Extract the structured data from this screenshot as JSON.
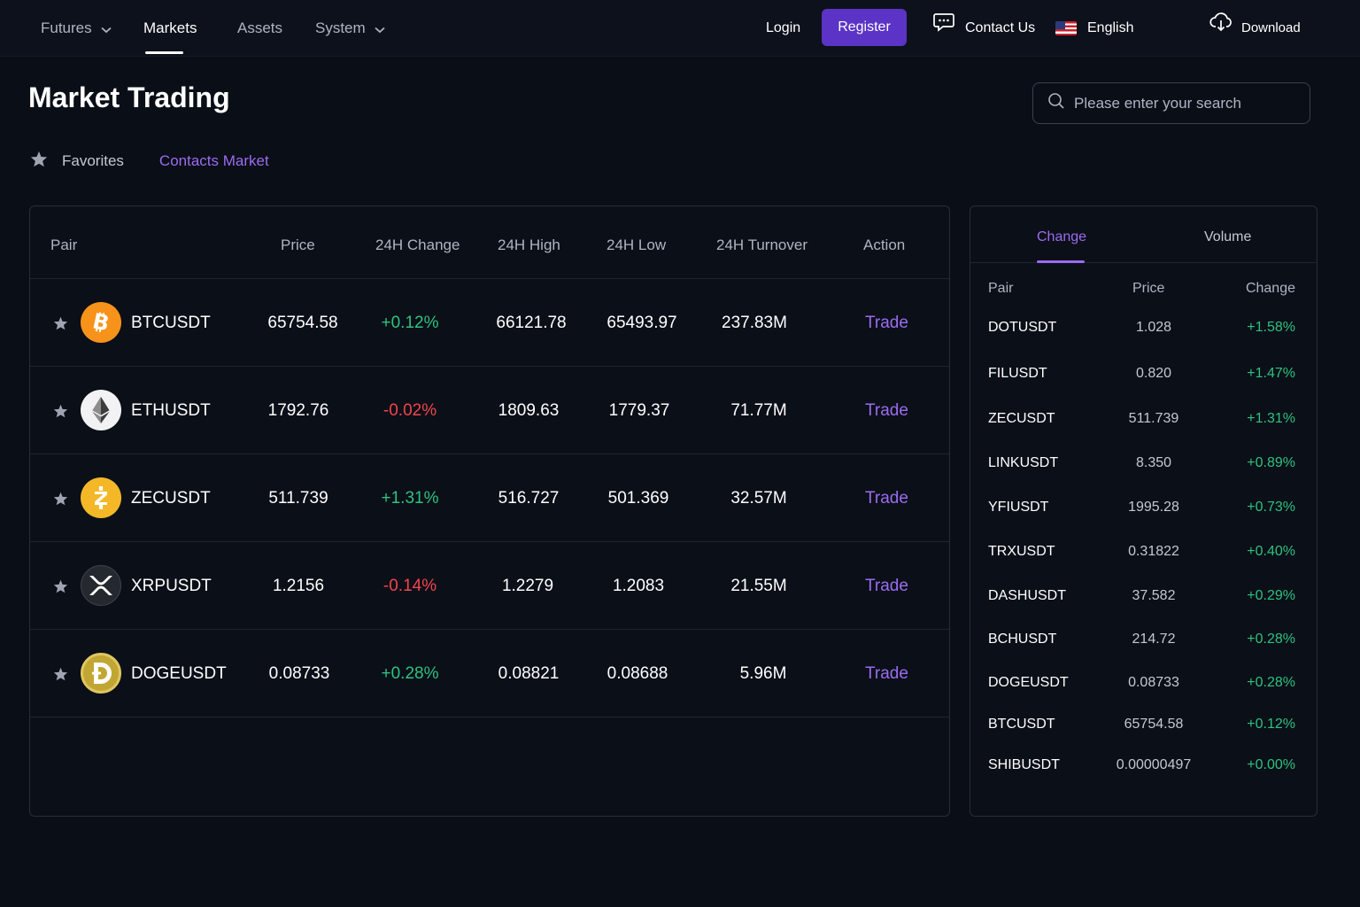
{
  "nav": {
    "items": [
      {
        "label": "Futures"
      },
      {
        "label": "Markets"
      },
      {
        "label": "Assets"
      },
      {
        "label": "System"
      }
    ],
    "login": "Login",
    "register": "Register",
    "contact": "Contact Us",
    "language": "English",
    "download": "Download"
  },
  "page": {
    "title": "Market Trading",
    "search_placeholder": "Please enter your search",
    "tab_favorites": "Favorites",
    "tab_contacts": "Contacts Market"
  },
  "table": {
    "headers": [
      "Pair",
      "Price",
      "24H Change",
      "24H High",
      "24H Low",
      "24H Turnover",
      "Action"
    ],
    "rows": [
      {
        "pair": "BTCUSDT",
        "price": "65754.58",
        "change": "+0.12%",
        "direction": "up",
        "high": "66121.78",
        "low": "65493.97",
        "turnover": "237.83M",
        "action": "Trade",
        "icon": "bitcoin-icon"
      },
      {
        "pair": "ETHUSDT",
        "price": "1792.76",
        "change": "-0.02%",
        "direction": "down",
        "high": "1809.63",
        "low": "1779.37",
        "turnover": "71.77M",
        "action": "Trade",
        "icon": "ethereum-icon"
      },
      {
        "pair": "ZECUSDT",
        "price": "511.739",
        "change": "+1.31%",
        "direction": "up",
        "high": "516.727",
        "low": "501.369",
        "turnover": "32.57M",
        "action": "Trade",
        "icon": "zcash-icon"
      },
      {
        "pair": "XRPUSDT",
        "price": "1.2156",
        "change": "-0.14%",
        "direction": "down",
        "high": "1.2279",
        "low": "1.2083",
        "turnover": "21.55M",
        "action": "Trade",
        "icon": "xrp-icon"
      },
      {
        "pair": "DOGEUSDT",
        "price": "0.08733",
        "change": "+0.28%",
        "direction": "up",
        "high": "0.08821",
        "low": "0.08688",
        "turnover": "5.96M",
        "action": "Trade",
        "icon": "dogecoin-icon"
      }
    ]
  },
  "side": {
    "tabs": [
      "Change",
      "Volume"
    ],
    "headers": [
      "Pair",
      "Price",
      "Change"
    ],
    "rows": [
      {
        "pair": "DOTUSDT",
        "price": "1.028",
        "change": "+1.58%"
      },
      {
        "pair": "FILUSDT",
        "price": "0.820",
        "change": "+1.47%"
      },
      {
        "pair": "ZECUSDT",
        "price": "511.739",
        "change": "+1.31%"
      },
      {
        "pair": "LINKUSDT",
        "price": "8.350",
        "change": "+0.89%"
      },
      {
        "pair": "YFIUSDT",
        "price": "1995.28",
        "change": "+0.73%"
      },
      {
        "pair": "TRXUSDT",
        "price": "0.31822",
        "change": "+0.40%"
      },
      {
        "pair": "DASHUSDT",
        "price": "37.582",
        "change": "+0.29%"
      },
      {
        "pair": "BCHUSDT",
        "price": "214.72",
        "change": "+0.28%"
      },
      {
        "pair": "DOGEUSDT",
        "price": "0.08733",
        "change": "+0.28%"
      },
      {
        "pair": "BTCUSDT",
        "price": "65754.58",
        "change": "+0.12%"
      },
      {
        "pair": "SHIBUSDT",
        "price": "0.00000497",
        "change": "+0.00%"
      }
    ]
  },
  "colors": {
    "accent": "#5b33c6",
    "accent_text": "#9b6cf0",
    "positive": "#2ec27e",
    "negative": "#f0464b",
    "background": "#0a0e17"
  }
}
